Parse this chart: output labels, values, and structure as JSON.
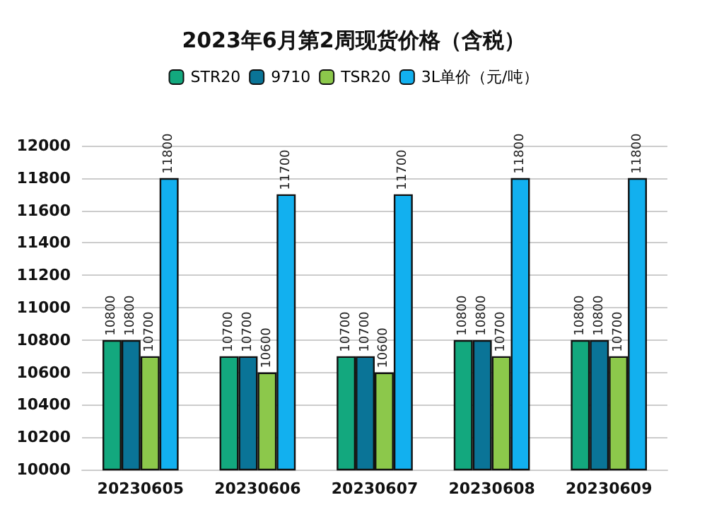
{
  "chart_data": {
    "type": "bar",
    "title": "2023年6月第2周现货价格（含税）",
    "categories": [
      "20230605",
      "20230606",
      "20230607",
      "20230608",
      "20230609"
    ],
    "series": [
      {
        "name": "STR20",
        "color": "#13a87e",
        "values": [
          10800,
          10700,
          10700,
          10800,
          10800
        ]
      },
      {
        "name": "9710",
        "color": "#0a7497",
        "values": [
          10800,
          10700,
          10700,
          10800,
          10800
        ]
      },
      {
        "name": "TSR20",
        "color": "#8cc84b",
        "values": [
          10700,
          10600,
          10600,
          10700,
          10700
        ]
      },
      {
        "name": "3L单价（元/吨）",
        "color": "#12b0ef",
        "values": [
          11800,
          11700,
          11700,
          11800,
          11800
        ]
      }
    ],
    "ylim": [
      10000,
      12000
    ],
    "yticks": [
      10000,
      10200,
      10400,
      10600,
      10800,
      11000,
      11200,
      11400,
      11600,
      11800,
      12000
    ],
    "grid": "y",
    "legend": "top",
    "data_labels": true
  }
}
